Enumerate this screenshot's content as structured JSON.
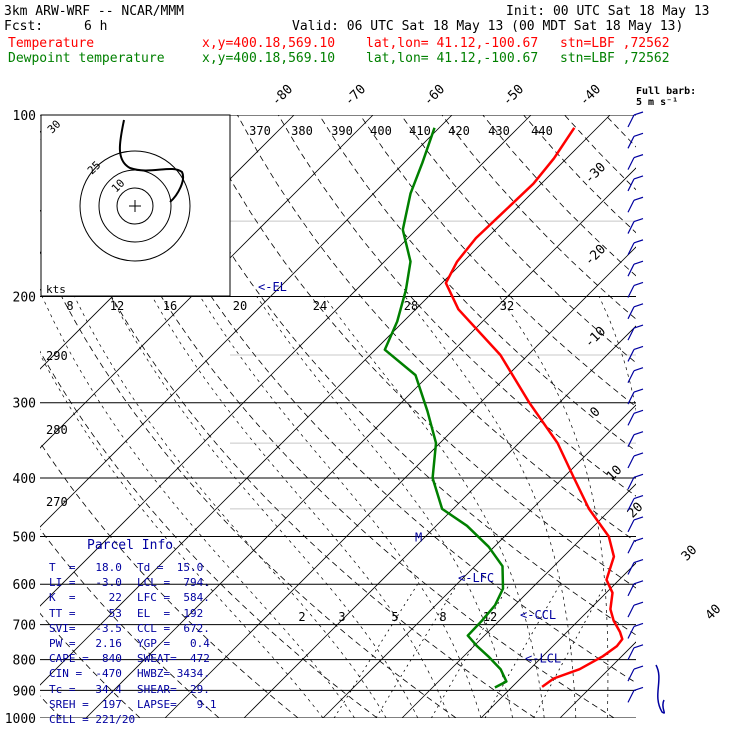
{
  "header": {
    "model": "3km ARW-WRF -- NCAR/MMM",
    "fcst_label": "Fcst:",
    "fcst_value": "6 h",
    "init": "Init: 00 UTC Sat 18 May 13",
    "valid": "Valid: 06 UTC Sat 18 May 13 (00 MDT Sat 18 May 13)",
    "temp_name": "Temperature",
    "dew_name": "Dewpoint temperature",
    "xy": "x,y=400.18,569.10",
    "latlon": "lat,lon= 41.12,-100.67",
    "station": "stn=LBF ,72562",
    "colors": {
      "temperature": "#ff0000",
      "dewpoint": "#008000",
      "annotation": "#0000a0"
    }
  },
  "barb_legend": {
    "line1": "Full barb:",
    "line2": "5 m s⁻¹"
  },
  "chart_data": {
    "type": "line",
    "chart_kind": "skew-T log-p sounding",
    "y_scale": "log pressure",
    "ylim": [
      1000,
      100
    ],
    "pressure_ticks": [
      100,
      200,
      300,
      400,
      500,
      600,
      700,
      800,
      900,
      1000
    ],
    "isotherm_labels": [
      "-80",
      "-70",
      "-60",
      "-50",
      "-40",
      "-30",
      "-20",
      "-10",
      "0",
      "10",
      "20",
      "30",
      "40"
    ],
    "theta_labels": [
      "370",
      "380",
      "390",
      "400",
      "410",
      "420",
      "430",
      "440"
    ],
    "theta_e_labels": [
      "290",
      "280",
      "270"
    ],
    "mixing_ratio_labels": [
      "2",
      "3",
      "5",
      "8",
      "12"
    ],
    "hodograph_speed_labels": [
      "8",
      "12",
      "16",
      "20",
      "24",
      "28",
      "32"
    ],
    "hodograph_unit": "kts",
    "hodograph_ring_labels": [
      "30",
      "25",
      "10"
    ],
    "series": [
      {
        "name": "Temperature",
        "color": "#ff0000",
        "points": [
          [
            888,
            13.8
          ],
          [
            860,
            14.2
          ],
          [
            830,
            16.3
          ],
          [
            790,
            17.6
          ],
          [
            760,
            18.1
          ],
          [
            740,
            17.9
          ],
          [
            720,
            16.7
          ],
          [
            690,
            14.5
          ],
          [
            660,
            12.6
          ],
          [
            620,
            10.8
          ],
          [
            590,
            8.4
          ],
          [
            540,
            6.4
          ],
          [
            500,
            3.2
          ],
          [
            450,
            -2.8
          ],
          [
            400,
            -8.6
          ],
          [
            350,
            -15.1
          ],
          [
            300,
            -23.8
          ],
          [
            250,
            -33.5
          ],
          [
            210,
            -44.6
          ],
          [
            190,
            -49.5
          ],
          [
            175,
            -50.8
          ],
          [
            160,
            -51.4
          ],
          [
            145,
            -51.2
          ],
          [
            130,
            -51.0
          ],
          [
            118,
            -51.6
          ],
          [
            105,
            -52.9
          ]
        ]
      },
      {
        "name": "Dewpoint temperature",
        "color": "#008000",
        "points": [
          [
            890,
            7.9
          ],
          [
            870,
            8.6
          ],
          [
            830,
            6.3
          ],
          [
            790,
            3.1
          ],
          [
            760,
            0.4
          ],
          [
            730,
            -2.1
          ],
          [
            690,
            -2.2
          ],
          [
            650,
            -2.5
          ],
          [
            610,
            -3.6
          ],
          [
            560,
            -6.5
          ],
          [
            520,
            -10.7
          ],
          [
            480,
            -16.1
          ],
          [
            450,
            -21.4
          ],
          [
            400,
            -26.5
          ],
          [
            350,
            -30.5
          ],
          [
            310,
            -35.6
          ],
          [
            270,
            -41.7
          ],
          [
            245,
            -48.8
          ],
          [
            220,
            -50.8
          ],
          [
            195,
            -53.7
          ],
          [
            175,
            -56.7
          ],
          [
            155,
            -61.7
          ],
          [
            135,
            -65.3
          ],
          [
            120,
            -67.7
          ],
          [
            105,
            -70.6
          ]
        ]
      }
    ],
    "annotations": [
      {
        "label": "<-EL",
        "p": 192
      },
      {
        "label": "<-LFC",
        "p": 584
      },
      {
        "label": "<-CCL",
        "p": 672
      },
      {
        "label": "<-LCL",
        "p": 794
      },
      {
        "label": "M",
        "p": 500
      }
    ],
    "wind_barbs": {
      "top_p": 100,
      "bottom_p": 900,
      "count": 28,
      "units": "m s-1",
      "full_barb": 5
    }
  },
  "parcel_info": {
    "title": "Parcel Info",
    "rows": [
      {
        "l": "T  =   18.0",
        "r": "Td =  15.0"
      },
      {
        "l": "LI =   -3.0",
        "r": "LCL =  794."
      },
      {
        "l": "K  =     22",
        "r": "LFC =  584."
      },
      {
        "l": "TT =     53",
        "r": "EL  =  192"
      },
      {
        "l": "SVI=   -3.5",
        "r": "CCL =  672."
      },
      {
        "l": "PW =   2.16",
        "r": "YGP =   0.4"
      },
      {
        "l": "CAPE =  840",
        "r": "SWEAT=  472"
      },
      {
        "l": "CIN =  -470",
        "r": "HWBZ= 3434."
      },
      {
        "l": "Tc =   34.4",
        "r": "SHEAR=  29."
      },
      {
        "l": "SREH =  197",
        "r": "LAPSE=   9.1"
      },
      {
        "l": "CELL = 221/20",
        "r": ""
      }
    ]
  }
}
